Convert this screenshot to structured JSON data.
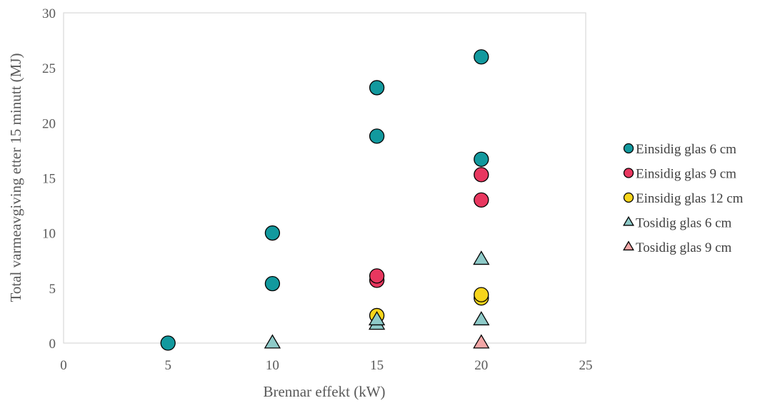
{
  "chart_data": {
    "type": "scatter",
    "title": "",
    "xlabel": "Brennar effekt (kW)",
    "ylabel": "Total varmeavgiving etter 15 minutt (MJ)",
    "xlim": [
      0,
      25
    ],
    "ylim": [
      0,
      30
    ],
    "xticks": [
      0,
      5,
      10,
      15,
      20,
      25
    ],
    "yticks": [
      0,
      5,
      10,
      15,
      20,
      25,
      30
    ],
    "grid": false,
    "legend_position": "right",
    "series": [
      {
        "name": "Einsidig glas 6 cm",
        "marker": "circle",
        "color": "#12999e",
        "points": [
          [
            5,
            0
          ],
          [
            10,
            5.4
          ],
          [
            10,
            10
          ],
          [
            15,
            18.8
          ],
          [
            15,
            23.2
          ],
          [
            20,
            16.7
          ],
          [
            20,
            26
          ]
        ]
      },
      {
        "name": "Einsidig glas 9 cm",
        "marker": "circle",
        "color": "#e8375f",
        "points": [
          [
            15,
            5.7
          ],
          [
            15,
            6.1
          ],
          [
            20,
            13
          ],
          [
            20,
            15.3
          ]
        ]
      },
      {
        "name": "Einsidig glas 12 cm",
        "marker": "circle",
        "color": "#f7d51b",
        "points": [
          [
            15,
            2.5
          ],
          [
            20,
            4.1
          ],
          [
            20,
            4.4
          ]
        ]
      },
      {
        "name": "Tosidig glas 6 cm",
        "marker": "triangle",
        "color": "#8ecac8",
        "points": [
          [
            10,
            0
          ],
          [
            15,
            1.7
          ],
          [
            15,
            2.1
          ],
          [
            20,
            2.1
          ],
          [
            20,
            7.6
          ]
        ]
      },
      {
        "name": "Tosidig glas 9 cm",
        "marker": "triangle",
        "color": "#f3a6a6",
        "points": [
          [
            20,
            0
          ]
        ]
      }
    ]
  }
}
